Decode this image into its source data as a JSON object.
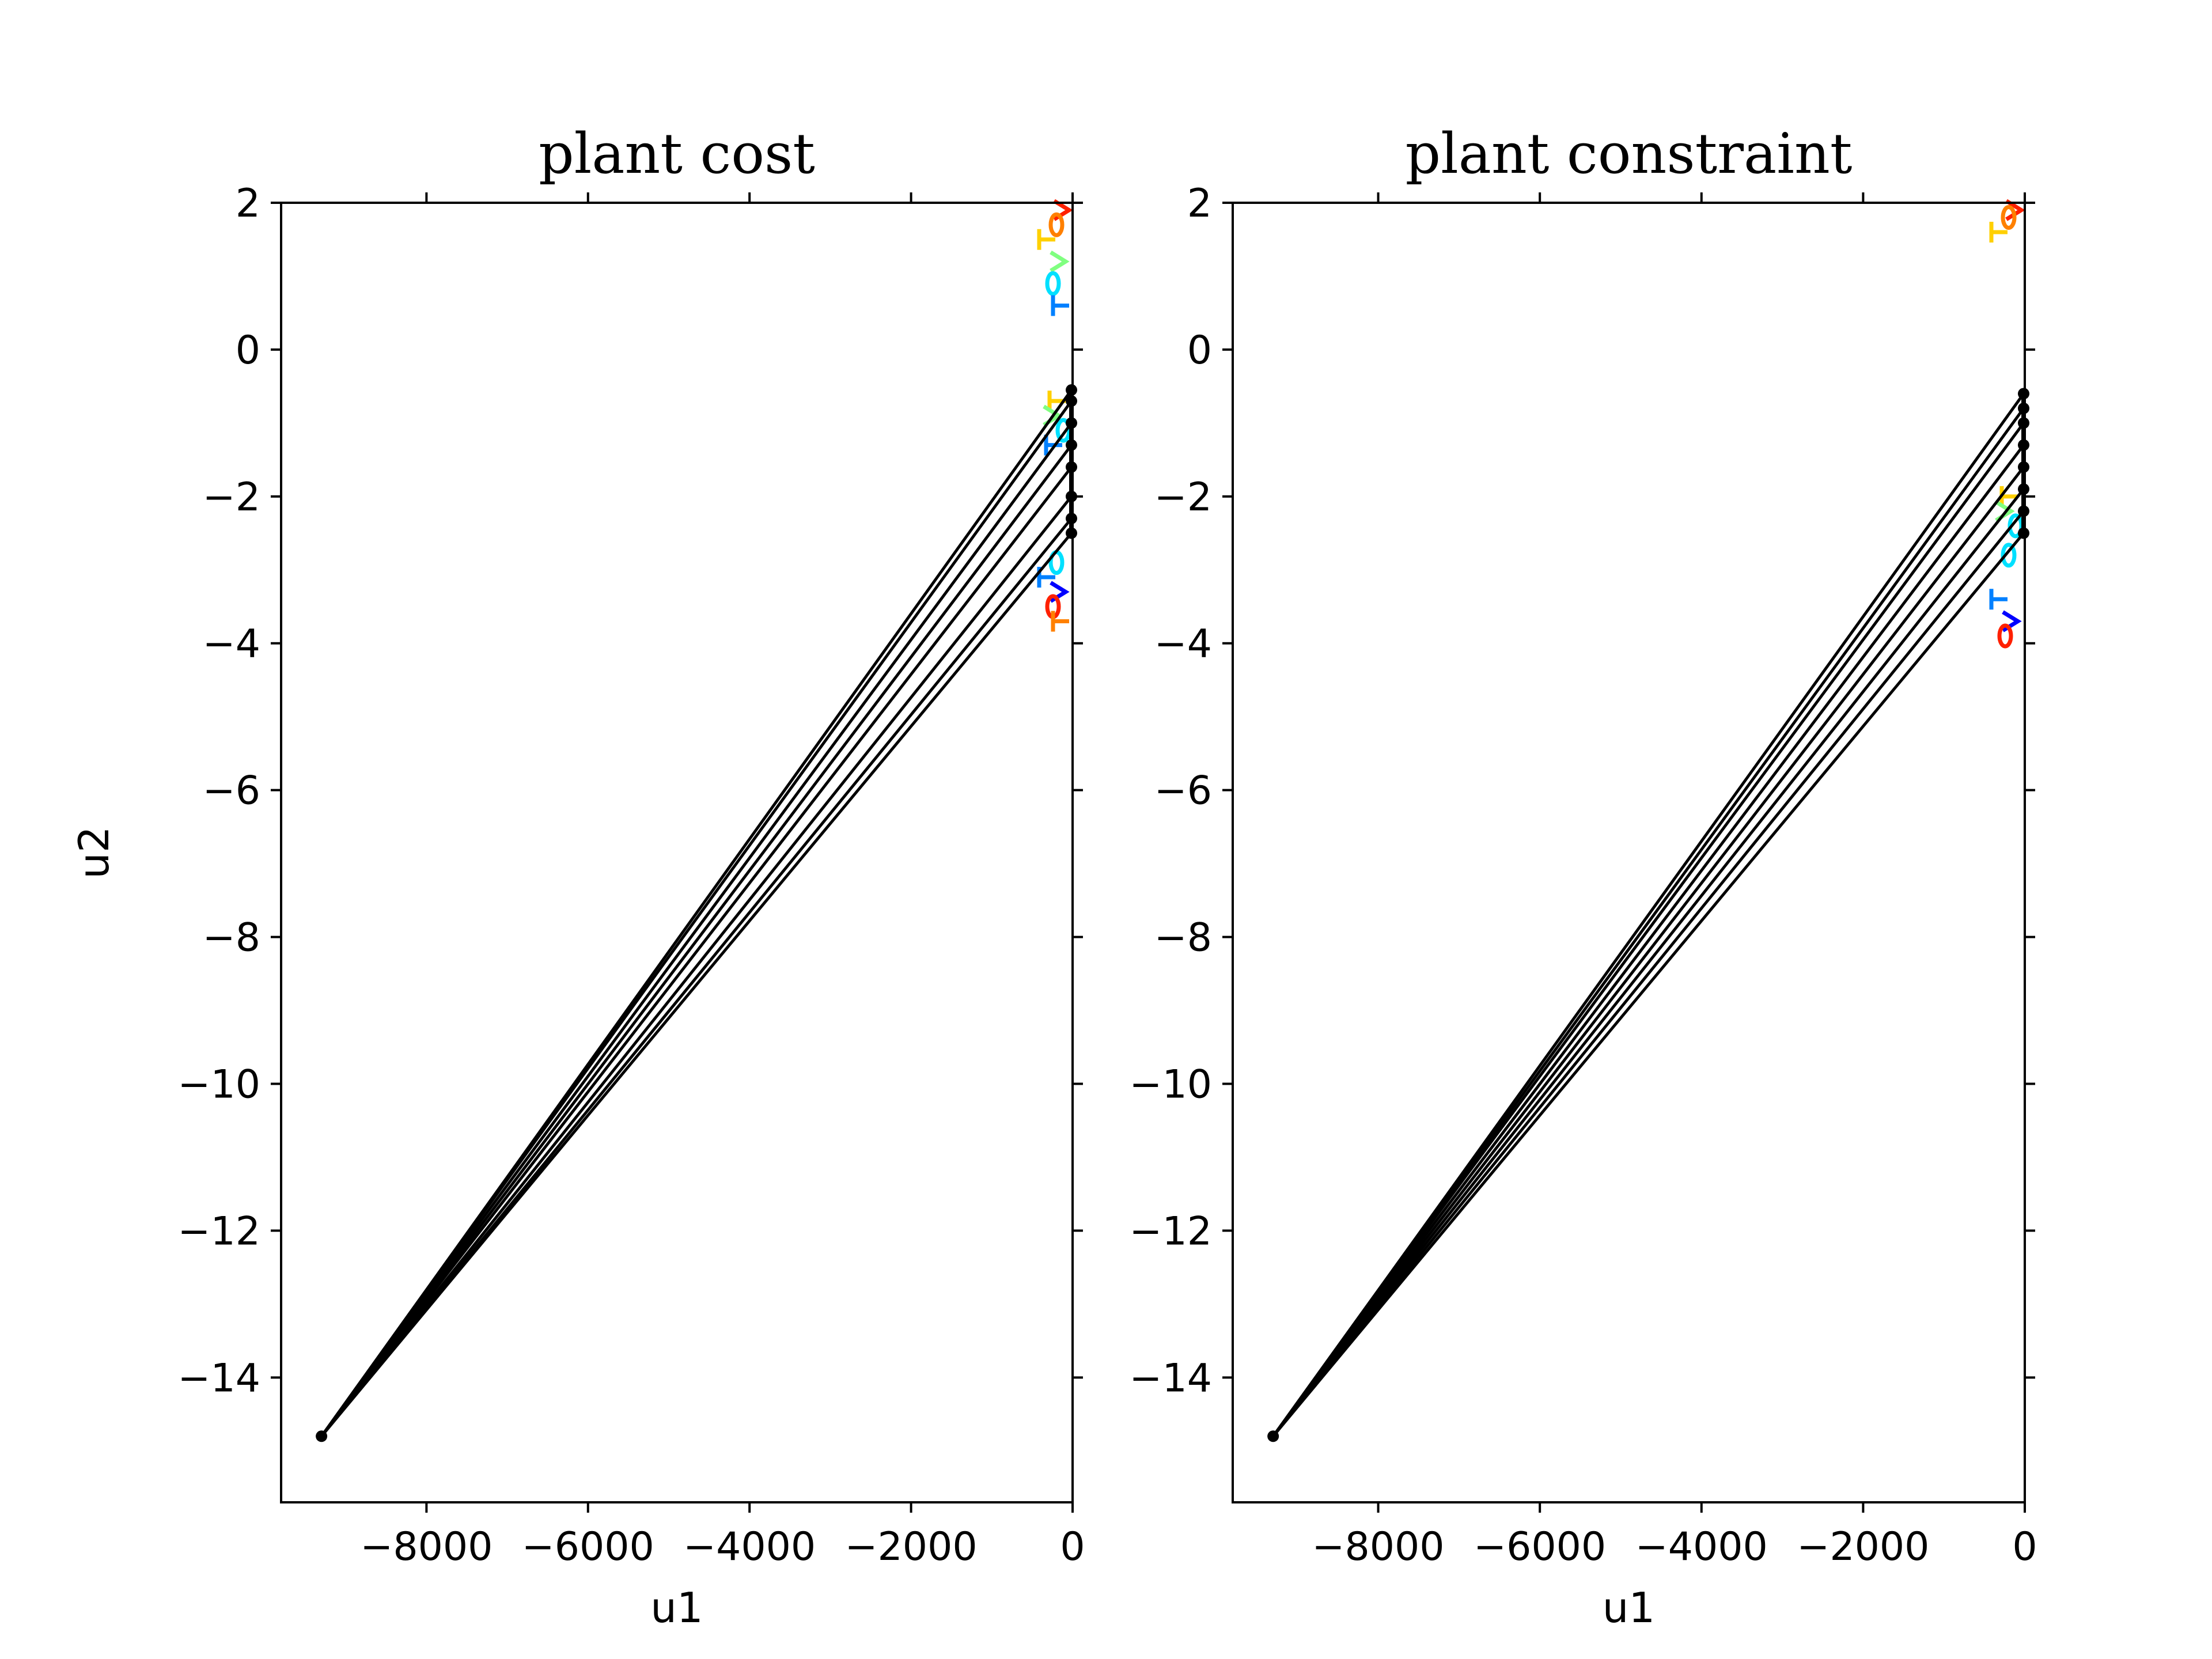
{
  "chart_data": [
    {
      "type": "line",
      "title": "plant cost",
      "xlabel": "u1",
      "ylabel": "u2",
      "xlim": [
        -9800,
        0
      ],
      "ylim": [
        -15.7,
        2
      ],
      "xticks": [
        -8000,
        -6000,
        -4000,
        -2000,
        0
      ],
      "xtick_labels": [
        "−8000",
        "−6000",
        "−4000",
        "−2000",
        "0"
      ],
      "yticks": [
        2,
        0,
        -2,
        -4,
        -6,
        -8,
        -10,
        -12,
        -14
      ],
      "ytick_labels": [
        "2",
        "0",
        "−2",
        "−4",
        "−6",
        "−8",
        "−10",
        "−12",
        "−14"
      ],
      "grid": false,
      "series": [
        {
          "color": "#000000",
          "marker": "dot",
          "x": [
            -9300,
            0,
            0,
            0,
            0,
            0,
            0,
            0,
            0
          ],
          "y": [
            -14.8,
            -2.5,
            -2.3,
            -2.0,
            -1.6,
            -1.3,
            -1.0,
            -0.7,
            -0.55
          ]
        }
      ],
      "colored_markers": {
        "colors": [
          "#ff2000",
          "#ff8000",
          "#ffd000",
          "#80ff80",
          "#00e0ff",
          "#0080ff",
          "#0000ff"
        ],
        "upper_cluster_y": [
          1.9,
          1.7,
          1.5,
          1.2,
          0.9,
          0.6
        ],
        "mid_cluster_y": [
          -0.7,
          -0.9,
          -1.1,
          -1.3
        ],
        "lower_cluster_y": [
          -2.9,
          -3.1,
          -3.3,
          -3.5,
          -3.7
        ]
      }
    },
    {
      "type": "line",
      "title": "plant constraint",
      "xlabel": "u1",
      "ylabel": "",
      "xlim": [
        -9800,
        0
      ],
      "ylim": [
        -15.7,
        2
      ],
      "xticks": [
        -8000,
        -6000,
        -4000,
        -2000,
        0
      ],
      "xtick_labels": [
        "−8000",
        "−6000",
        "−4000",
        "−2000",
        "0"
      ],
      "yticks": [
        2,
        0,
        -2,
        -4,
        -6,
        -8,
        -10,
        -12,
        -14
      ],
      "ytick_labels": [
        "2",
        "0",
        "−2",
        "−4",
        "−6",
        "−8",
        "−10",
        "−12",
        "−14"
      ],
      "grid": false,
      "series": [
        {
          "color": "#000000",
          "marker": "dot",
          "x": [
            -9300,
            0,
            0,
            0,
            0,
            0,
            0,
            0,
            0
          ],
          "y": [
            -14.8,
            -2.5,
            -2.2,
            -1.9,
            -1.6,
            -1.3,
            -1.0,
            -0.8,
            -0.6
          ]
        }
      ],
      "colored_markers": {
        "colors": [
          "#ff2000",
          "#ff8000",
          "#ffd000",
          "#80ff80",
          "#00e0ff",
          "#0080ff",
          "#0000ff"
        ],
        "upper_cluster_y": [
          1.9,
          1.8,
          1.6
        ],
        "mid_cluster_y": [
          -2.0,
          -2.2,
          -2.4
        ],
        "lower_cluster_y": [
          -2.8,
          -3.4,
          -3.7,
          -3.9
        ]
      }
    }
  ]
}
